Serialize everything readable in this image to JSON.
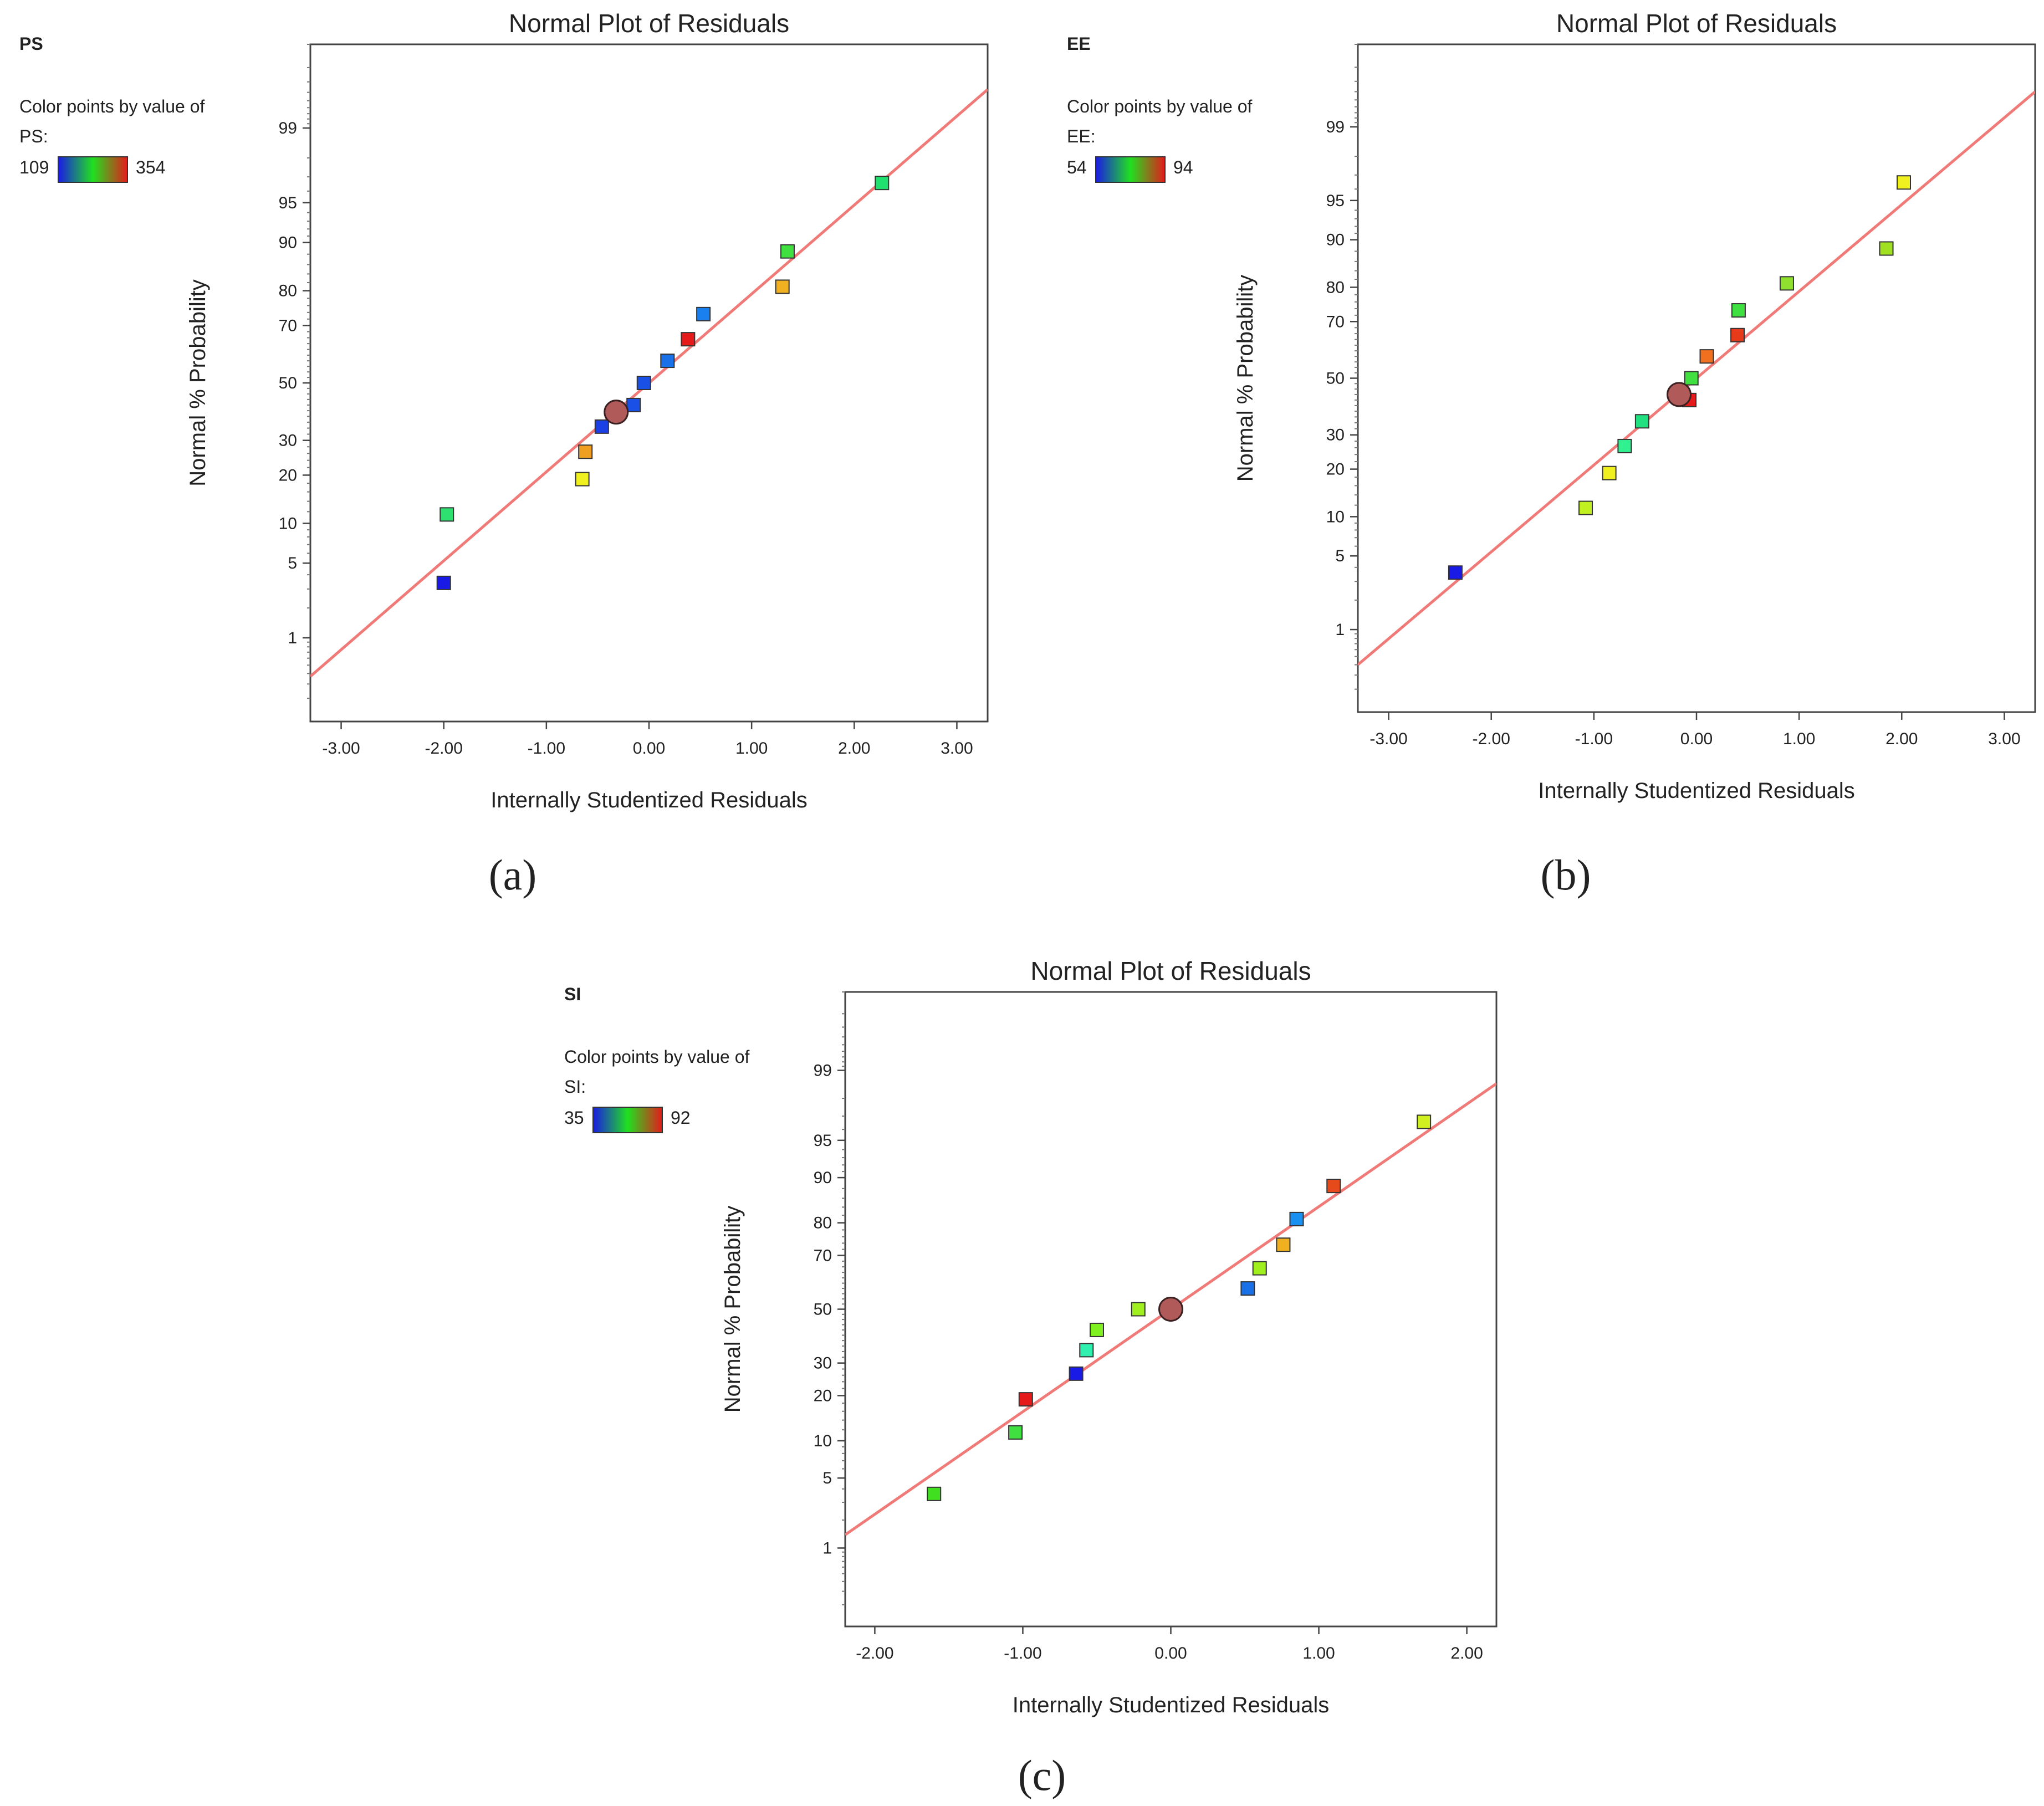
{
  "chart_data": [
    {
      "type": "scatter",
      "panel_label": "(a)",
      "title": "Normal Plot of Residuals",
      "xlabel": "Internally Studentized Residuals",
      "ylabel": "Normal % Probability",
      "response_label": "PS",
      "color_by_text": "Color points by value of",
      "color_var_label": "PS:",
      "color_min_label": "109",
      "color_max_label": "354",
      "xlim": [
        -3.3,
        3.3
      ],
      "xticks": [
        -3,
        -2,
        -1,
        0,
        1,
        2,
        3
      ],
      "xtick_labels": [
        "-3.00",
        "-2.00",
        "-1.00",
        "0.00",
        "1.00",
        "2.00",
        "3.00"
      ],
      "yticks": [
        1,
        5,
        10,
        20,
        30,
        50,
        70,
        80,
        90,
        95,
        99
      ],
      "yrange_prob": [
        0.1,
        99.9
      ],
      "ref_line": [
        [
          -3.3,
          0.37
        ],
        [
          3.3,
          99.63
        ]
      ],
      "points": [
        {
          "x": -2.0,
          "p": 3.4,
          "color": "#1a1ae6"
        },
        {
          "x": -1.97,
          "p": 11.5,
          "color": "#2ee070"
        },
        {
          "x": -0.65,
          "p": 19.0,
          "color": "#f0f020"
        },
        {
          "x": -0.62,
          "p": 26.5,
          "color": "#f0a020"
        },
        {
          "x": -0.46,
          "p": 34.5,
          "color": "#1a40e6"
        },
        {
          "x": -0.15,
          "p": 42.0,
          "color": "#1a50e6"
        },
        {
          "x": -0.05,
          "p": 50.0,
          "color": "#1a50e6"
        },
        {
          "x": 0.18,
          "p": 58.0,
          "color": "#1a70e6"
        },
        {
          "x": 0.38,
          "p": 65.5,
          "color": "#e61a1a"
        },
        {
          "x": 0.53,
          "p": 73.5,
          "color": "#1a80f0"
        },
        {
          "x": 1.3,
          "p": 81.0,
          "color": "#f0b020"
        },
        {
          "x": 1.35,
          "p": 88.5,
          "color": "#40e040"
        },
        {
          "x": 2.27,
          "p": 96.6,
          "color": "#20e070"
        }
      ],
      "highlight": {
        "x": -0.32,
        "p": 39.5
      }
    },
    {
      "type": "scatter",
      "panel_label": "(b)",
      "title": "Normal Plot of Residuals",
      "xlabel": "Internally Studentized Residuals",
      "ylabel": "Normal % Probability",
      "response_label": "EE",
      "color_by_text": "Color points by value of",
      "color_var_label": "EE:",
      "color_min_label": "54",
      "color_max_label": "94",
      "xlim": [
        -3.3,
        3.3
      ],
      "xticks": [
        -3,
        -2,
        -1,
        0,
        1,
        2,
        3
      ],
      "xtick_labels": [
        "-3.00",
        "-2.00",
        "-1.00",
        "0.00",
        "1.00",
        "2.00",
        "3.00"
      ],
      "yticks": [
        1,
        5,
        10,
        20,
        30,
        50,
        70,
        80,
        90,
        95,
        99
      ],
      "yrange_prob": [
        0.1,
        99.9
      ],
      "ref_line": [
        [
          -3.3,
          0.4
        ],
        [
          3.3,
          99.6
        ]
      ],
      "points": [
        {
          "x": -2.35,
          "p": 3.6,
          "color": "#1a1ae6"
        },
        {
          "x": -1.08,
          "p": 11.5,
          "color": "#c0f020"
        },
        {
          "x": -0.85,
          "p": 19.0,
          "color": "#f0f020"
        },
        {
          "x": -0.7,
          "p": 26.5,
          "color": "#30f090"
        },
        {
          "x": -0.53,
          "p": 34.5,
          "color": "#20e080"
        },
        {
          "x": -0.07,
          "p": 42.0,
          "color": "#e61a1a"
        },
        {
          "x": -0.05,
          "p": 50.0,
          "color": "#40e040"
        },
        {
          "x": 0.1,
          "p": 58.0,
          "color": "#f07020"
        },
        {
          "x": 0.4,
          "p": 65.5,
          "color": "#e63a1a"
        },
        {
          "x": 0.41,
          "p": 73.5,
          "color": "#40e040"
        },
        {
          "x": 0.88,
          "p": 81.0,
          "color": "#90e030"
        },
        {
          "x": 1.85,
          "p": 88.5,
          "color": "#a0e020"
        },
        {
          "x": 2.02,
          "p": 96.5,
          "color": "#f0f020"
        }
      ],
      "highlight": {
        "x": -0.17,
        "p": 44.0
      }
    },
    {
      "type": "scatter",
      "panel_label": "(c)",
      "title": "Normal Plot of Residuals",
      "xlabel": "Internally Studentized Residuals",
      "ylabel": "Normal % Probability",
      "response_label": "SI",
      "color_by_text": "Color points by value of",
      "color_var_label": "SI:",
      "color_min_label": "35",
      "color_max_label": "92",
      "xlim": [
        -2.2,
        2.2
      ],
      "xticks": [
        -2,
        -1,
        0,
        1,
        2
      ],
      "xtick_labels": [
        "-2.00",
        "-1.00",
        "0.00",
        "1.00",
        "2.00"
      ],
      "yticks": [
        1,
        5,
        10,
        20,
        30,
        50,
        70,
        80,
        90,
        95,
        99
      ],
      "yrange_prob": [
        0.1,
        99.9
      ],
      "ref_line": [
        [
          -2.2,
          1.4
        ],
        [
          2.2,
          98.6
        ]
      ],
      "points": [
        {
          "x": -1.6,
          "p": 3.6,
          "color": "#40e020"
        },
        {
          "x": -1.05,
          "p": 11.5,
          "color": "#40e040"
        },
        {
          "x": -0.98,
          "p": 19.0,
          "color": "#e61a1a"
        },
        {
          "x": -0.64,
          "p": 26.5,
          "color": "#1a1ae6"
        },
        {
          "x": -0.57,
          "p": 34.5,
          "color": "#30f0b0"
        },
        {
          "x": -0.5,
          "p": 42.0,
          "color": "#80f020"
        },
        {
          "x": -0.22,
          "p": 50.0,
          "color": "#a0f020"
        },
        {
          "x": 0.52,
          "p": 58.0,
          "color": "#1a70e6"
        },
        {
          "x": 0.6,
          "p": 65.5,
          "color": "#a0f020"
        },
        {
          "x": 0.76,
          "p": 73.5,
          "color": "#f0b020"
        },
        {
          "x": 0.85,
          "p": 81.0,
          "color": "#1a90f0"
        },
        {
          "x": 1.1,
          "p": 88.5,
          "color": "#e64a1a"
        },
        {
          "x": 1.71,
          "p": 96.6,
          "color": "#d0f020"
        }
      ],
      "highlight": {
        "x": 0.0,
        "p": 50.0
      }
    }
  ]
}
